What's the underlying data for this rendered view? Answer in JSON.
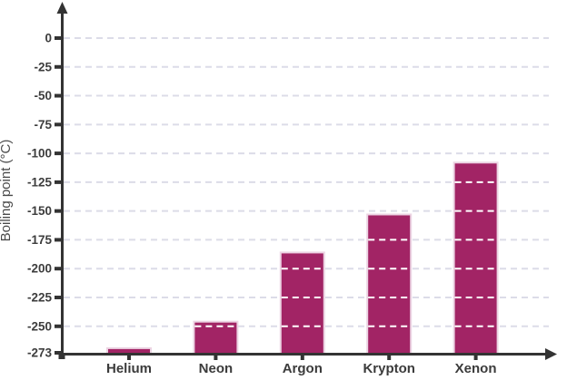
{
  "chart_data": {
    "type": "bar",
    "title": "",
    "categories": [
      "Helium",
      "Neon",
      "Argon",
      "Krypton",
      "Xenon"
    ],
    "values": [
      -269,
      -246,
      -186,
      -153,
      -108
    ],
    "ylabel": "Boiling point (°C)",
    "xlabel": "",
    "yticks": [
      0,
      -25,
      -50,
      -75,
      -100,
      -125,
      -150,
      -175,
      -200,
      -225,
      -250,
      -273
    ],
    "ylim": [
      -273,
      0
    ],
    "baseline": -273,
    "grid": true,
    "legend": false,
    "gridline_style": "dashed",
    "colors": {
      "bar_fill": "#a22465",
      "bar_stroke": "#ecd4e3",
      "gridline": "#dcdce8",
      "gridline_on_bar": "#ffffff",
      "axis": "#333333",
      "tick_label": "#3d3d3d",
      "category_label": "#3b3b3b",
      "axis_title": "#4a4a4a"
    }
  }
}
